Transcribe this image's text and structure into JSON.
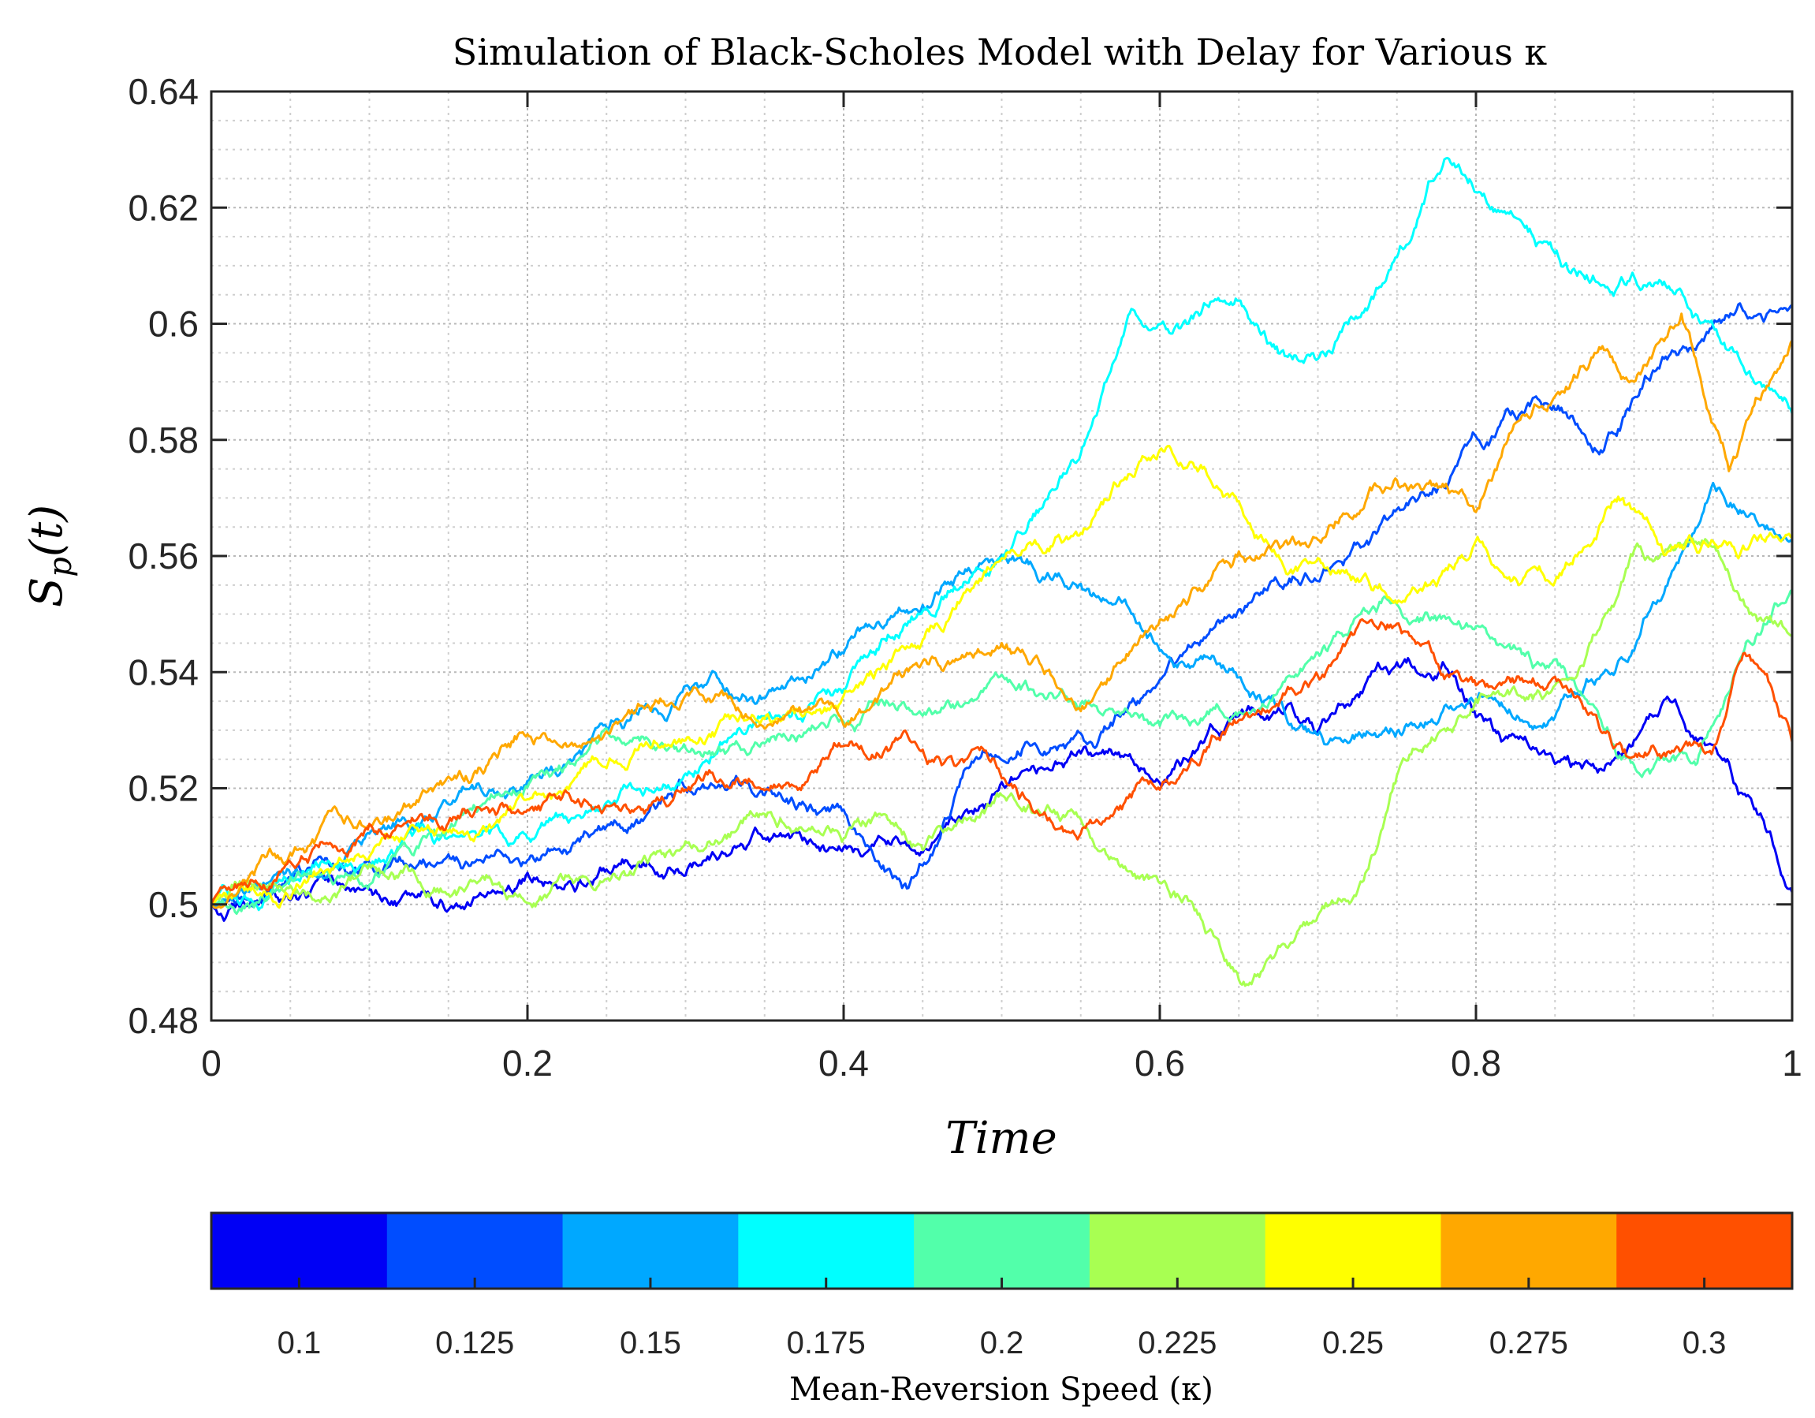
{
  "chart_data": {
    "type": "line",
    "title": "Simulation of Black-Scholes Model with Delay for Various κ",
    "xlabel": "Time",
    "ylabel": "S",
    "ylabel_subscript": "p",
    "ylabel_suffix": "(t)",
    "xlim": [
      0,
      1
    ],
    "ylim": [
      0.48,
      0.64
    ],
    "x_ticks": [
      0,
      0.2,
      0.4,
      0.6,
      0.8,
      1
    ],
    "x_tick_labels": [
      "0",
      "0.2",
      "0.4",
      "0.6",
      "0.8",
      "1"
    ],
    "y_ticks": [
      0.48,
      0.5,
      0.52,
      0.54,
      0.56,
      0.58,
      0.6,
      0.62,
      0.64
    ],
    "y_tick_labels": [
      "0.48",
      "0.5",
      "0.52",
      "0.54",
      "0.56",
      "0.58",
      "0.6",
      "0.62",
      "0.64"
    ],
    "grid": true,
    "minor_grid": true,
    "colorbar": {
      "label": "Mean-Reversion Speed (κ)",
      "location": "bottom",
      "tick_labels": [
        "0.1",
        "0.125",
        "0.15",
        "0.175",
        "0.2",
        "0.225",
        "0.25",
        "0.275",
        "0.3"
      ],
      "colors": [
        "#0000f5",
        "#004dff",
        "#00a8ff",
        "#00ffff",
        "#52ffaa",
        "#a8ff52",
        "#ffff00",
        "#ffa800",
        "#ff5000"
      ]
    },
    "series": [
      {
        "name": "0.1",
        "color": "#0000f5",
        "seed": 11,
        "anchors": [
          [
            0,
            0.5
          ],
          [
            0.08,
            0.503
          ],
          [
            0.12,
            0.501
          ],
          [
            0.16,
            0.5
          ],
          [
            0.2,
            0.503
          ],
          [
            0.25,
            0.505
          ],
          [
            0.3,
            0.507
          ],
          [
            0.35,
            0.512
          ],
          [
            0.4,
            0.51
          ],
          [
            0.44,
            0.509
          ],
          [
            0.5,
            0.52
          ],
          [
            0.55,
            0.527
          ],
          [
            0.6,
            0.522
          ],
          [
            0.65,
            0.533
          ],
          [
            0.7,
            0.532
          ],
          [
            0.75,
            0.54
          ],
          [
            0.78,
            0.541
          ],
          [
            0.82,
            0.528
          ],
          [
            0.85,
            0.526
          ],
          [
            0.88,
            0.522
          ],
          [
            0.92,
            0.535
          ],
          [
            0.96,
            0.524
          ],
          [
            1,
            0.503
          ]
        ]
      },
      {
        "name": "0.125",
        "color": "#004dff",
        "seed": 23,
        "anchors": [
          [
            0,
            0.5
          ],
          [
            0.05,
            0.504
          ],
          [
            0.1,
            0.507
          ],
          [
            0.15,
            0.508
          ],
          [
            0.2,
            0.507
          ],
          [
            0.25,
            0.513
          ],
          [
            0.3,
            0.52
          ],
          [
            0.35,
            0.52
          ],
          [
            0.4,
            0.514
          ],
          [
            0.44,
            0.503
          ],
          [
            0.48,
            0.521
          ],
          [
            0.52,
            0.53
          ],
          [
            0.56,
            0.528
          ],
          [
            0.6,
            0.54
          ],
          [
            0.65,
            0.55
          ],
          [
            0.7,
            0.558
          ],
          [
            0.75,
            0.566
          ],
          [
            0.8,
            0.58
          ],
          [
            0.84,
            0.585
          ],
          [
            0.88,
            0.58
          ],
          [
            0.92,
            0.595
          ],
          [
            0.96,
            0.6
          ],
          [
            1,
            0.603
          ]
        ]
      },
      {
        "name": "0.15",
        "color": "#00a8ff",
        "seed": 37,
        "anchors": [
          [
            0,
            0.5
          ],
          [
            0.05,
            0.505
          ],
          [
            0.1,
            0.51
          ],
          [
            0.15,
            0.518
          ],
          [
            0.2,
            0.522
          ],
          [
            0.25,
            0.528
          ],
          [
            0.3,
            0.538
          ],
          [
            0.35,
            0.535
          ],
          [
            0.4,
            0.544
          ],
          [
            0.45,
            0.553
          ],
          [
            0.5,
            0.56
          ],
          [
            0.55,
            0.555
          ],
          [
            0.6,
            0.544
          ],
          [
            0.63,
            0.542
          ],
          [
            0.67,
            0.535
          ],
          [
            0.72,
            0.527
          ],
          [
            0.76,
            0.53
          ],
          [
            0.8,
            0.535
          ],
          [
            0.85,
            0.532
          ],
          [
            0.9,
            0.545
          ],
          [
            0.95,
            0.57
          ],
          [
            1,
            0.565
          ]
        ]
      },
      {
        "name": "0.175",
        "color": "#00ffff",
        "seed": 51,
        "anchors": [
          [
            0,
            0.5
          ],
          [
            0.05,
            0.503
          ],
          [
            0.1,
            0.51
          ],
          [
            0.15,
            0.512
          ],
          [
            0.2,
            0.512
          ],
          [
            0.25,
            0.517
          ],
          [
            0.3,
            0.522
          ],
          [
            0.35,
            0.532
          ],
          [
            0.4,
            0.538
          ],
          [
            0.45,
            0.55
          ],
          [
            0.5,
            0.56
          ],
          [
            0.55,
            0.578
          ],
          [
            0.58,
            0.6
          ],
          [
            0.62,
            0.6
          ],
          [
            0.65,
            0.605
          ],
          [
            0.68,
            0.594
          ],
          [
            0.7,
            0.593
          ],
          [
            0.73,
            0.603
          ],
          [
            0.76,
            0.615
          ],
          [
            0.78,
            0.628
          ],
          [
            0.82,
            0.62
          ],
          [
            0.86,
            0.608
          ],
          [
            0.9,
            0.608
          ],
          [
            0.93,
            0.605
          ],
          [
            0.97,
            0.592
          ],
          [
            1,
            0.585
          ]
        ]
      },
      {
        "name": "0.2",
        "color": "#52ffaa",
        "seed": 67,
        "anchors": [
          [
            0,
            0.5
          ],
          [
            0.05,
            0.503
          ],
          [
            0.1,
            0.506
          ],
          [
            0.15,
            0.513
          ],
          [
            0.2,
            0.521
          ],
          [
            0.25,
            0.528
          ],
          [
            0.3,
            0.527
          ],
          [
            0.35,
            0.527
          ],
          [
            0.4,
            0.532
          ],
          [
            0.45,
            0.535
          ],
          [
            0.5,
            0.537
          ],
          [
            0.55,
            0.536
          ],
          [
            0.6,
            0.53
          ],
          [
            0.65,
            0.533
          ],
          [
            0.7,
            0.543
          ],
          [
            0.75,
            0.552
          ],
          [
            0.8,
            0.548
          ],
          [
            0.85,
            0.54
          ],
          [
            0.9,
            0.525
          ],
          [
            0.94,
            0.523
          ],
          [
            0.97,
            0.545
          ],
          [
            1,
            0.555
          ]
        ]
      },
      {
        "name": "0.225",
        "color": "#a8ff52",
        "seed": 79,
        "anchors": [
          [
            0,
            0.5
          ],
          [
            0.05,
            0.503
          ],
          [
            0.1,
            0.505
          ],
          [
            0.15,
            0.503
          ],
          [
            0.2,
            0.502
          ],
          [
            0.25,
            0.505
          ],
          [
            0.3,
            0.509
          ],
          [
            0.35,
            0.515
          ],
          [
            0.4,
            0.513
          ],
          [
            0.42,
            0.515
          ],
          [
            0.45,
            0.51
          ],
          [
            0.5,
            0.518
          ],
          [
            0.55,
            0.515
          ],
          [
            0.58,
            0.505
          ],
          [
            0.62,
            0.5
          ],
          [
            0.65,
            0.488
          ],
          [
            0.68,
            0.493
          ],
          [
            0.72,
            0.5
          ],
          [
            0.75,
            0.522
          ],
          [
            0.8,
            0.535
          ],
          [
            0.85,
            0.536
          ],
          [
            0.9,
            0.56
          ],
          [
            0.95,
            0.56
          ],
          [
            1,
            0.545
          ]
        ]
      },
      {
        "name": "0.25",
        "color": "#ffff00",
        "seed": 89,
        "anchors": [
          [
            0,
            0.5
          ],
          [
            0.05,
            0.503
          ],
          [
            0.1,
            0.51
          ],
          [
            0.15,
            0.512
          ],
          [
            0.2,
            0.518
          ],
          [
            0.25,
            0.523
          ],
          [
            0.3,
            0.53
          ],
          [
            0.35,
            0.532
          ],
          [
            0.4,
            0.535
          ],
          [
            0.45,
            0.545
          ],
          [
            0.5,
            0.56
          ],
          [
            0.55,
            0.565
          ],
          [
            0.6,
            0.578
          ],
          [
            0.63,
            0.575
          ],
          [
            0.66,
            0.563
          ],
          [
            0.7,
            0.558
          ],
          [
            0.75,
            0.553
          ],
          [
            0.8,
            0.56
          ],
          [
            0.85,
            0.555
          ],
          [
            0.89,
            0.572
          ],
          [
            0.92,
            0.56
          ],
          [
            0.96,
            0.562
          ],
          [
            1,
            0.563
          ]
        ]
      },
      {
        "name": "0.275",
        "color": "#ffa800",
        "seed": 97,
        "anchors": [
          [
            0,
            0.5
          ],
          [
            0.05,
            0.51
          ],
          [
            0.1,
            0.515
          ],
          [
            0.15,
            0.52
          ],
          [
            0.2,
            0.528
          ],
          [
            0.25,
            0.53
          ],
          [
            0.3,
            0.537
          ],
          [
            0.35,
            0.532
          ],
          [
            0.4,
            0.533
          ],
          [
            0.45,
            0.54
          ],
          [
            0.5,
            0.545
          ],
          [
            0.55,
            0.535
          ],
          [
            0.6,
            0.549
          ],
          [
            0.65,
            0.56
          ],
          [
            0.7,
            0.562
          ],
          [
            0.75,
            0.575
          ],
          [
            0.8,
            0.567
          ],
          [
            0.83,
            0.585
          ],
          [
            0.86,
            0.59
          ],
          [
            0.88,
            0.595
          ],
          [
            0.9,
            0.59
          ],
          [
            0.93,
            0.601
          ],
          [
            0.96,
            0.576
          ],
          [
            1,
            0.598
          ]
        ]
      },
      {
        "name": "0.3",
        "color": "#ff5000",
        "seed": 103,
        "anchors": [
          [
            0,
            0.5
          ],
          [
            0.05,
            0.507
          ],
          [
            0.1,
            0.512
          ],
          [
            0.15,
            0.515
          ],
          [
            0.2,
            0.518
          ],
          [
            0.25,
            0.516
          ],
          [
            0.3,
            0.52
          ],
          [
            0.35,
            0.52
          ],
          [
            0.4,
            0.526
          ],
          [
            0.45,
            0.528
          ],
          [
            0.5,
            0.522
          ],
          [
            0.55,
            0.512
          ],
          [
            0.6,
            0.52
          ],
          [
            0.65,
            0.532
          ],
          [
            0.7,
            0.54
          ],
          [
            0.75,
            0.55
          ],
          [
            0.78,
            0.54
          ],
          [
            0.82,
            0.537
          ],
          [
            0.86,
            0.538
          ],
          [
            0.9,
            0.525
          ],
          [
            0.95,
            0.527
          ],
          [
            0.97,
            0.545
          ],
          [
            1,
            0.528
          ]
        ]
      }
    ]
  }
}
